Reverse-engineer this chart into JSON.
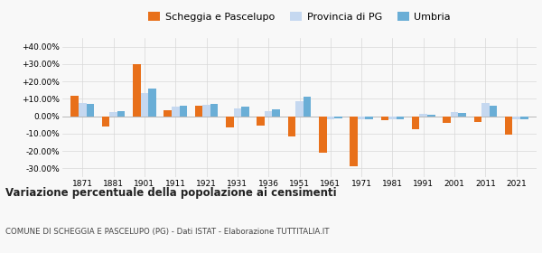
{
  "years": [
    1871,
    1881,
    1901,
    1911,
    1921,
    1931,
    1936,
    1951,
    1961,
    1971,
    1981,
    1991,
    2001,
    2011,
    2021
  ],
  "scheggia": [
    12.0,
    -6.0,
    30.0,
    3.5,
    6.0,
    -6.5,
    -5.5,
    -11.5,
    -21.0,
    -29.0,
    -2.5,
    -7.5,
    -4.0,
    -3.5,
    -10.5
  ],
  "provincia": [
    7.5,
    2.5,
    13.5,
    5.5,
    6.5,
    4.5,
    3.0,
    8.5,
    -1.5,
    -2.0,
    -1.5,
    1.5,
    2.5,
    7.5,
    -1.5
  ],
  "umbria": [
    7.0,
    3.0,
    16.0,
    6.0,
    7.0,
    5.5,
    4.0,
    11.0,
    -1.0,
    -2.0,
    -1.5,
    1.0,
    2.0,
    6.0,
    -2.0
  ],
  "color_scheggia": "#e8701a",
  "color_provincia": "#c5d8f0",
  "color_umbria": "#6aaed6",
  "ylim": [
    -35,
    45
  ],
  "yticks": [
    -30,
    -20,
    -10,
    0,
    10,
    20,
    30,
    40
  ],
  "title": "Variazione percentuale della popolazione ai censimenti",
  "subtitle": "COMUNE DI SCHEGGIA E PASCELUPO (PG) - Dati ISTAT - Elaborazione TUTTITALIA.IT",
  "legend_labels": [
    "Scheggia e Pascelupo",
    "Provincia di PG",
    "Umbria"
  ],
  "bg_color": "#f8f8f8",
  "grid_color": "#d8d8d8"
}
